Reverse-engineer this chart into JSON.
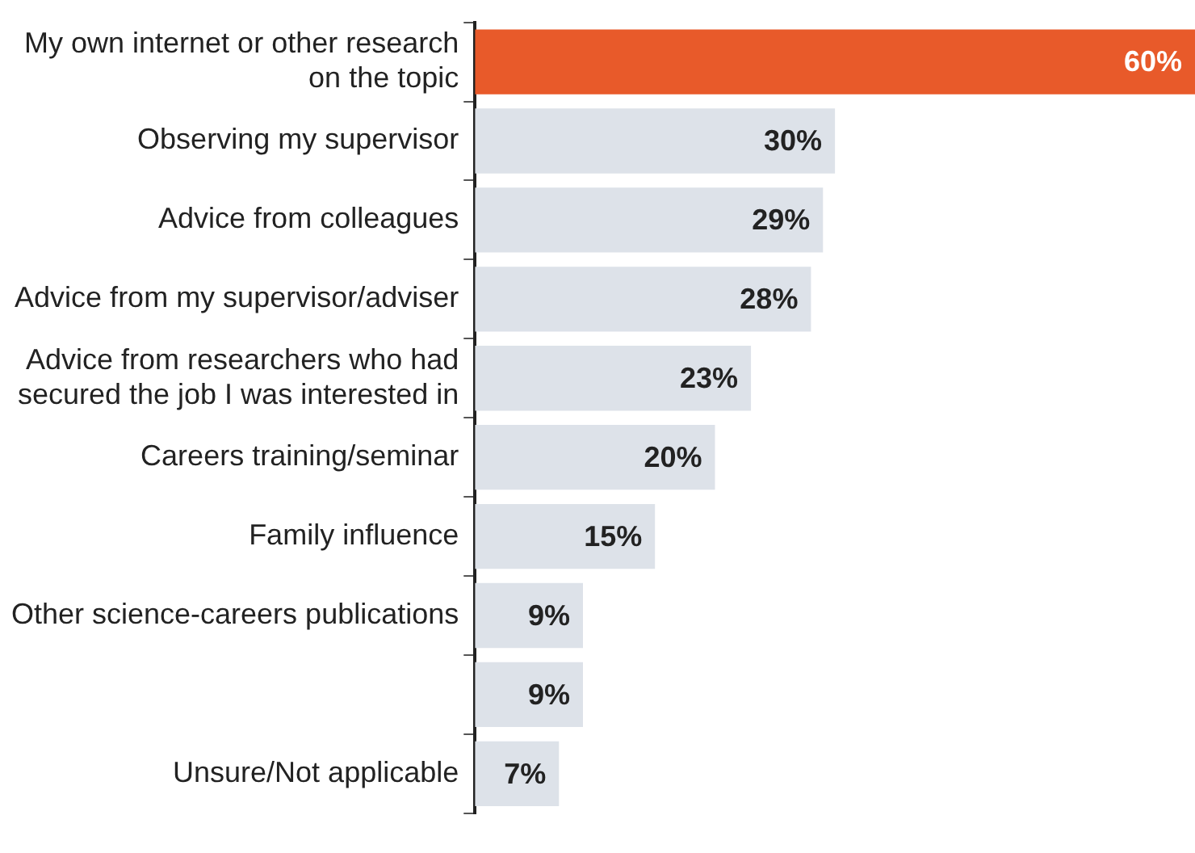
{
  "chart_data": {
    "type": "bar",
    "orientation": "horizontal",
    "categories": [
      "My own internet or other research\non the topic",
      "Observing my supervisor",
      "Advice from colleagues",
      "Advice from my supervisor/adviser",
      "Advice from researchers who had\nsecured the job I was interested in",
      "Careers training/seminar",
      "Family influence",
      "Other science-careers publications",
      null,
      "Unsure/Not applicable"
    ],
    "values": [
      60,
      30,
      29,
      28,
      23,
      20,
      15,
      9,
      9,
      7
    ],
    "value_labels": [
      "60%",
      "30%",
      "29%",
      "28%",
      "23%",
      "20%",
      "15%",
      "9%",
      "9%",
      "7%"
    ],
    "colors": [
      "#e85a2a",
      "#dde2e9",
      "#dde2e9",
      "#dde2e9",
      "#dde2e9",
      "#dde2e9",
      "#dde2e9",
      "#dde2e9",
      "#dde2e9",
      "#dde2e9"
    ],
    "xlim": [
      0,
      60
    ],
    "tick_labels": "y",
    "grid": false,
    "legend": false
  }
}
